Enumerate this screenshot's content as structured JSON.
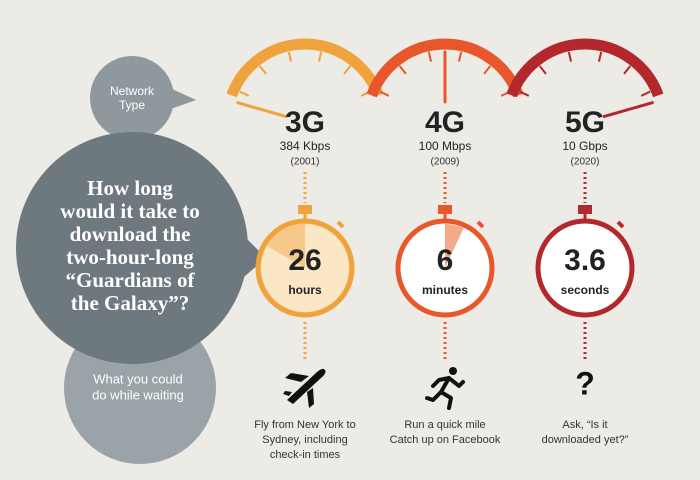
{
  "bubbles": {
    "network_type": [
      "Network",
      "Type"
    ],
    "question": [
      "How long",
      "would it take to",
      "download the",
      "two-hour-long",
      "“Guardians of",
      "the Galaxy”?"
    ],
    "waiting": [
      "What you could",
      "do while waiting"
    ]
  },
  "columns": [
    {
      "name": "3G",
      "speed": "384 Kbps",
      "year": "(2001)",
      "time": "26",
      "unit": "hours",
      "color": "#f0a23c",
      "activity": [
        "Fly from New York to",
        "Sydney, including",
        "check-in times"
      ]
    },
    {
      "name": "4G",
      "speed": "100 Mbps",
      "year": "(2009)",
      "time": "6",
      "unit": "minutes",
      "color": "#e8572b",
      "activity": [
        "Run a quick mile",
        "Catch up on Facebook"
      ]
    },
    {
      "name": "5G",
      "speed": "10 Gbps",
      "year": "(2020)",
      "time": "3.6",
      "unit": "seconds",
      "color": "#b3282c",
      "icon": "?",
      "activity": [
        "Ask, “Is it",
        "downloaded yet?”"
      ]
    }
  ]
}
